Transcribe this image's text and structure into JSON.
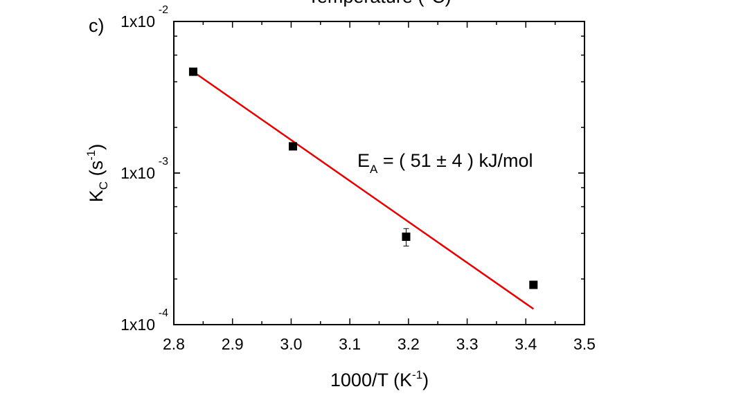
{
  "chart_data": {
    "type": "scatter",
    "panel_label": "c)",
    "top_title_fragment": "Temperature (°C)",
    "xlabel": {
      "main": "1000/T (K",
      "sup": "-1",
      "end": ")"
    },
    "ylabel": {
      "main": "K",
      "sub": "C",
      "mid": " (s",
      "sup": "-1",
      "end": ")"
    },
    "xlim": [
      2.8,
      3.5
    ],
    "ylim": [
      0.0001,
      0.01
    ],
    "yscale": "log",
    "x_ticks": [
      {
        "value": 2.8,
        "label": "2.8"
      },
      {
        "value": 2.9,
        "label": "2.9"
      },
      {
        "value": 3.0,
        "label": "3.0"
      },
      {
        "value": 3.1,
        "label": "3.1"
      },
      {
        "value": 3.2,
        "label": "3.2"
      },
      {
        "value": 3.3,
        "label": "3.3"
      },
      {
        "value": 3.4,
        "label": "3.4"
      },
      {
        "value": 3.5,
        "label": "3.5"
      }
    ],
    "y_ticks": [
      {
        "value": 0.01,
        "base": "1x10",
        "exp": "-2"
      },
      {
        "value": 0.001,
        "base": "1x10",
        "exp": "-3"
      },
      {
        "value": 0.0001,
        "base": "1x10",
        "exp": "-4"
      }
    ],
    "grid": false,
    "series": [
      {
        "marker": "square",
        "color": "#000000",
        "points": [
          {
            "x": 2.833,
            "y": 0.00466,
            "err": 0.00015
          },
          {
            "x": 3.003,
            "y": 0.0015,
            "err": 6e-05
          },
          {
            "x": 3.196,
            "y": 0.00038,
            "err": 5e-05
          },
          {
            "x": 3.413,
            "y": 0.000183,
            "err": 6e-06
          }
        ]
      },
      {
        "marker": "line",
        "color": "#e60000",
        "points": [
          {
            "x": 2.833,
            "y": 0.00466
          },
          {
            "x": 3.413,
            "y": 0.000127
          }
        ]
      }
    ],
    "annotation": {
      "main": "E",
      "sub": "A",
      "rest": " = ( 51 ± 4 ) kJ/mol"
    }
  }
}
